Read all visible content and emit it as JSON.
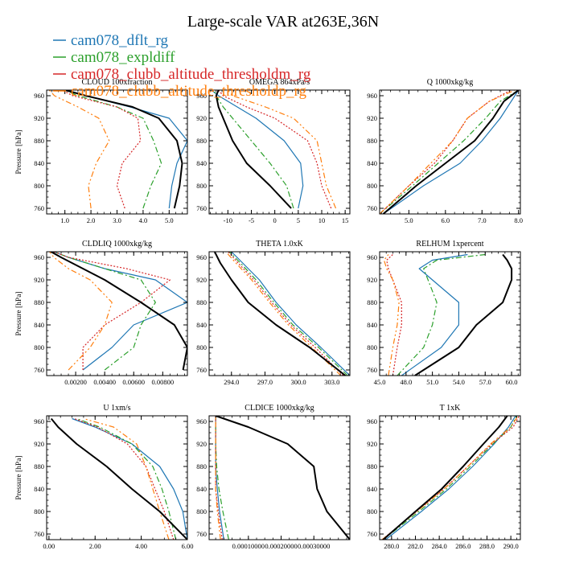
{
  "title": "Large-scale VAR at263E,36N",
  "legend": [
    {
      "name": "cam078_dflt_rg",
      "color": "#1f77b4",
      "dash": ""
    },
    {
      "name": "cam078_expldiff",
      "color": "#2ca02c",
      "dash": "7,3,2,3"
    },
    {
      "name": "cam078_clubb_altitude_thresholdm_rg",
      "color": "#d62728",
      "dash": "2,2"
    },
    {
      "name": "cam078_clubb_altitude_thresholdp_rg",
      "color": "#ff7f0e",
      "dash": "7,3,2,3,2,3"
    }
  ],
  "reference_color": "#000000",
  "chart_data": [
    {
      "type": "line",
      "title": "CLOUD 100xfraction",
      "ylabel": "Pressure [hPa]",
      "xlim": [
        0.3,
        5.7
      ],
      "ylim": [
        970,
        750
      ],
      "xticks": [
        1.0,
        2.0,
        3.0,
        4.0,
        5.0
      ],
      "xticklabels": [
        "1.0",
        "2.0",
        "3.0",
        "4.0",
        "5.0"
      ],
      "yticks": [
        760,
        800,
        840,
        880,
        920,
        960
      ],
      "yticklabels": [
        "760",
        "800",
        "840",
        "880",
        "920",
        "960"
      ],
      "y": [
        760,
        800,
        840,
        880,
        920,
        940,
        960,
        970
      ],
      "series": [
        {
          "values": [
            5.0,
            5.1,
            5.3,
            5.7,
            5.0,
            3.5,
            1.8,
            1.1
          ]
        },
        {
          "values": [
            4.0,
            4.3,
            4.7,
            4.4,
            4.0,
            3.0,
            1.5,
            1.0
          ]
        },
        {
          "values": [
            3.3,
            3.0,
            3.2,
            3.9,
            3.8,
            3.0,
            1.3,
            0.9
          ]
        },
        {
          "values": [
            2.0,
            1.9,
            2.2,
            2.7,
            2.3,
            1.5,
            0.6,
            0.4
          ]
        },
        {
          "values": [
            5.2,
            5.4,
            5.5,
            5.3,
            4.6,
            3.6,
            1.8,
            1.0
          ]
        }
      ]
    },
    {
      "type": "line",
      "title": "OMEGA 864xPa/s",
      "ylabel": "",
      "xlim": [
        -14,
        16
      ],
      "ylim": [
        970,
        750
      ],
      "xticks": [
        -10,
        -5,
        0,
        5,
        10,
        15
      ],
      "xticklabels": [
        "-10",
        "-5",
        "0",
        "5",
        "10",
        "15"
      ],
      "yticks": [
        760,
        800,
        840,
        880,
        920,
        960
      ],
      "yticklabels": [
        "760",
        "800",
        "840",
        "880",
        "920",
        "960"
      ],
      "y": [
        760,
        800,
        840,
        880,
        920,
        940,
        960,
        970
      ],
      "series": [
        {
          "values": [
            5.0,
            6.0,
            5.5,
            2.0,
            -4.0,
            -8.0,
            -12.0,
            -13.5
          ]
        },
        {
          "values": [
            4.0,
            2.5,
            -1.0,
            -5.0,
            -9.0,
            -11.0,
            -12.5,
            -13.0
          ]
        },
        {
          "values": [
            12.0,
            10.0,
            9.0,
            7.0,
            0.0,
            -6.0,
            -11.0,
            -12.0
          ]
        },
        {
          "values": [
            13.0,
            11.0,
            10.0,
            9.0,
            4.0,
            -2.0,
            -9.0,
            -10.0
          ]
        },
        {
          "values": [
            3.5,
            -1.0,
            -6.0,
            -9.0,
            -11.0,
            -12.0,
            -12.5,
            -12.0
          ]
        }
      ]
    },
    {
      "type": "line",
      "title": "Q 1000xkg/kg",
      "ylabel": "",
      "xlim": [
        4.2,
        8.05
      ],
      "ylim": [
        970,
        750
      ],
      "xticks": [
        5.0,
        6.0,
        7.0,
        8.0
      ],
      "xticklabels": [
        "5.0",
        "6.0",
        "7.0",
        "8.0"
      ],
      "yticks": [
        760,
        800,
        840,
        880,
        920,
        960
      ],
      "yticklabels": [
        "760",
        "800",
        "840",
        "880",
        "920",
        "960"
      ],
      "y": [
        750,
        800,
        840,
        880,
        920,
        950,
        970
      ],
      "series": [
        {
          "values": [
            4.3,
            5.4,
            6.4,
            7.0,
            7.5,
            7.8,
            8.0
          ]
        },
        {
          "values": [
            4.2,
            5.1,
            5.8,
            6.5,
            7.1,
            7.5,
            8.0
          ]
        },
        {
          "values": [
            4.2,
            5.0,
            5.7,
            6.2,
            6.6,
            7.2,
            7.8
          ]
        },
        {
          "values": [
            4.2,
            5.0,
            5.6,
            6.2,
            6.6,
            7.2,
            7.9
          ]
        },
        {
          "values": [
            4.3,
            5.2,
            6.0,
            6.8,
            7.3,
            7.6,
            8.0
          ]
        }
      ]
    },
    {
      "type": "line",
      "title": "CLDLIQ 1000xkg/kg",
      "ylabel": "Pressure [hPa]",
      "xlim": [
        0.0,
        0.0097
      ],
      "ylim": [
        970,
        750
      ],
      "xticks": [
        0.002,
        0.004,
        0.006,
        0.008
      ],
      "xticklabels": [
        "0.00200",
        "0.00400",
        "0.00600",
        "0.00800"
      ],
      "yticks": [
        760,
        800,
        840,
        880,
        920,
        960
      ],
      "yticklabels": [
        "760",
        "800",
        "840",
        "880",
        "920",
        "960"
      ],
      "y": [
        760,
        800,
        840,
        880,
        920,
        940,
        960,
        970
      ],
      "series": [
        {
          "values": [
            0.0025,
            0.0045,
            0.006,
            0.0097,
            0.0075,
            0.004,
            0.0015,
            0.0005
          ]
        },
        {
          "values": [
            0.004,
            0.006,
            0.0065,
            0.0075,
            0.0065,
            0.004,
            0.0015,
            0.0005
          ]
        },
        {
          "values": [
            0.0025,
            0.0025,
            0.004,
            0.0065,
            0.0085,
            0.0055,
            0.0015,
            0.0005
          ]
        },
        {
          "values": [
            0.0015,
            0.003,
            0.004,
            0.0045,
            0.003,
            0.0015,
            0.0005,
            0.0002
          ]
        },
        {
          "values": [
            0.0094,
            0.0097,
            0.0088,
            0.0065,
            0.004,
            0.0025,
            0.001,
            0.0003
          ]
        }
      ]
    },
    {
      "type": "line",
      "title": "THETA 1.0xK",
      "ylabel": "",
      "xlim": [
        292.0,
        304.6
      ],
      "ylim": [
        970,
        750
      ],
      "xticks": [
        294.0,
        297.0,
        300.0,
        303.0
      ],
      "xticklabels": [
        "294.0",
        "297.0",
        "300.0",
        "303.0"
      ],
      "yticks": [
        760,
        800,
        840,
        880,
        920,
        960
      ],
      "yticklabels": [
        "760",
        "800",
        "840",
        "880",
        "920",
        "960"
      ],
      "y": [
        750,
        800,
        840,
        880,
        920,
        950,
        970
      ],
      "series": [
        {
          "values": [
            304.6,
            302.0,
            299.8,
            298.0,
            296.5,
            295.0,
            294.0
          ]
        },
        {
          "values": [
            304.4,
            301.8,
            299.5,
            297.8,
            296.2,
            294.8,
            293.8
          ]
        },
        {
          "values": [
            304.0,
            301.5,
            299.3,
            297.6,
            296.0,
            294.6,
            293.7
          ]
        },
        {
          "values": [
            303.8,
            301.2,
            299.1,
            297.4,
            295.8,
            294.4,
            293.5
          ]
        },
        {
          "values": [
            304.2,
            301.0,
            298.0,
            295.5,
            294.0,
            293.0,
            292.5
          ]
        }
      ]
    },
    {
      "type": "line",
      "title": "RELHUM 1xpercent",
      "ylabel": "",
      "xlim": [
        45.0,
        61.0
      ],
      "ylim": [
        970,
        750
      ],
      "xticks": [
        45.0,
        48.0,
        51.0,
        54.0,
        57.0,
        60.0
      ],
      "xticklabels": [
        "45.0",
        "48.0",
        "51.0",
        "54.0",
        "57.0",
        "60.0"
      ],
      "yticks": [
        760,
        800,
        840,
        880,
        920,
        960
      ],
      "yticklabels": [
        "760",
        "800",
        "840",
        "880",
        "920",
        "960"
      ],
      "y": [
        750,
        800,
        840,
        880,
        920,
        940,
        955,
        965
      ],
      "series": [
        {
          "values": [
            47.5,
            52.0,
            54.0,
            54.0,
            51.0,
            49.5,
            51.0,
            55.0
          ]
        },
        {
          "values": [
            47.0,
            50.0,
            51.0,
            51.5,
            50.5,
            50.0,
            51.5,
            57.0
          ]
        },
        {
          "values": [
            46.5,
            47.0,
            47.5,
            47.5,
            46.5,
            46.0,
            45.8,
            46.5
          ]
        },
        {
          "values": [
            46.0,
            46.5,
            47.0,
            47.2,
            46.5,
            45.8,
            45.5,
            46.0
          ]
        },
        {
          "values": [
            49.0,
            54.0,
            56.0,
            59.0,
            60.0,
            60.0,
            59.5,
            59.0
          ]
        }
      ]
    },
    {
      "type": "line",
      "title": "U 1xm/s",
      "ylabel": "Pressure [hPa]",
      "xlim": [
        -0.1,
        6.0
      ],
      "ylim": [
        970,
        750
      ],
      "xticks": [
        0.0,
        2.0,
        4.0,
        6.0
      ],
      "xticklabels": [
        "0.00",
        "2.00",
        "4.00",
        "6.00"
      ],
      "yticks": [
        760,
        800,
        840,
        880,
        920,
        960
      ],
      "yticklabels": [
        "760",
        "800",
        "840",
        "880",
        "920",
        "960"
      ],
      "y": [
        750,
        800,
        840,
        880,
        920,
        950,
        965
      ],
      "series": [
        {
          "values": [
            6.0,
            5.8,
            5.4,
            4.8,
            3.6,
            2.0,
            1.0
          ]
        },
        {
          "values": [
            5.5,
            5.2,
            4.9,
            4.5,
            3.6,
            2.2,
            1.2
          ]
        },
        {
          "values": [
            5.4,
            5.0,
            4.6,
            4.2,
            3.4,
            2.1,
            1.1
          ]
        },
        {
          "values": [
            5.2,
            4.8,
            4.5,
            4.2,
            3.8,
            2.8,
            1.5
          ]
        },
        {
          "values": [
            6.0,
            4.8,
            3.6,
            2.5,
            1.2,
            0.4,
            0.1
          ]
        }
      ]
    },
    {
      "type": "line",
      "title": "CLDICE 1000xkg/kg",
      "ylabel": "",
      "xlim": [
        -2e-05,
        0.00041
      ],
      "ylim": [
        970,
        750
      ],
      "xticks": [
        0.0001,
        0.0002,
        0.0003
      ],
      "xticklabels": [
        "0.00010000",
        "0.00020000",
        "0.00030000"
      ],
      "yticks": [
        760,
        800,
        840,
        880,
        920,
        960
      ],
      "yticklabels": [
        "760",
        "800",
        "840",
        "880",
        "920",
        "960"
      ],
      "y": [
        750,
        800,
        840,
        880,
        920,
        950,
        970
      ],
      "series": [
        {
          "values": [
            2.5e-05,
            1.2e-05,
            5e-06,
            0.0,
            0.0,
            0.0,
            0.0
          ]
        },
        {
          "values": [
            4e-05,
            2.2e-05,
            1e-05,
            3e-06,
            0.0,
            0.0,
            0.0
          ]
        },
        {
          "values": [
            2e-05,
            8e-06,
            0.0,
            0.0,
            0.0,
            0.0,
            0.0
          ]
        },
        {
          "values": [
            1.5e-05,
            5e-06,
            0.0,
            0.0,
            0.0,
            0.0,
            0.0
          ]
        },
        {
          "values": [
            0.00041,
            0.00034,
            0.00031,
            0.0003,
            0.00022,
            0.0001,
            0.0
          ]
        }
      ]
    },
    {
      "type": "line",
      "title": "T 1xK",
      "ylabel": "",
      "xlim": [
        279.0,
        290.8
      ],
      "ylim": [
        970,
        750
      ],
      "xticks": [
        280.0,
        282.0,
        284.0,
        286.0,
        288.0,
        290.0
      ],
      "xticklabels": [
        "280.0",
        "282.0",
        "284.0",
        "286.0",
        "288.0",
        "290.0"
      ],
      "yticks": [
        760,
        800,
        840,
        880,
        920,
        960
      ],
      "yticklabels": [
        "760",
        "800",
        "840",
        "880",
        "920",
        "960"
      ],
      "y": [
        750,
        800,
        840,
        880,
        920,
        950,
        970
      ],
      "series": [
        {
          "values": [
            279.5,
            282.5,
            284.8,
            286.8,
            288.6,
            289.8,
            290.4
          ]
        },
        {
          "values": [
            279.3,
            282.3,
            284.6,
            286.6,
            288.5,
            290.0,
            290.5
          ]
        },
        {
          "values": [
            279.2,
            282.1,
            284.4,
            286.4,
            288.4,
            290.2,
            290.7
          ]
        },
        {
          "values": [
            279.2,
            282.1,
            284.4,
            286.4,
            288.3,
            290.0,
            290.6
          ]
        },
        {
          "values": [
            279.3,
            282.0,
            284.2,
            286.0,
            287.7,
            289.0,
            289.7
          ]
        }
      ]
    }
  ]
}
